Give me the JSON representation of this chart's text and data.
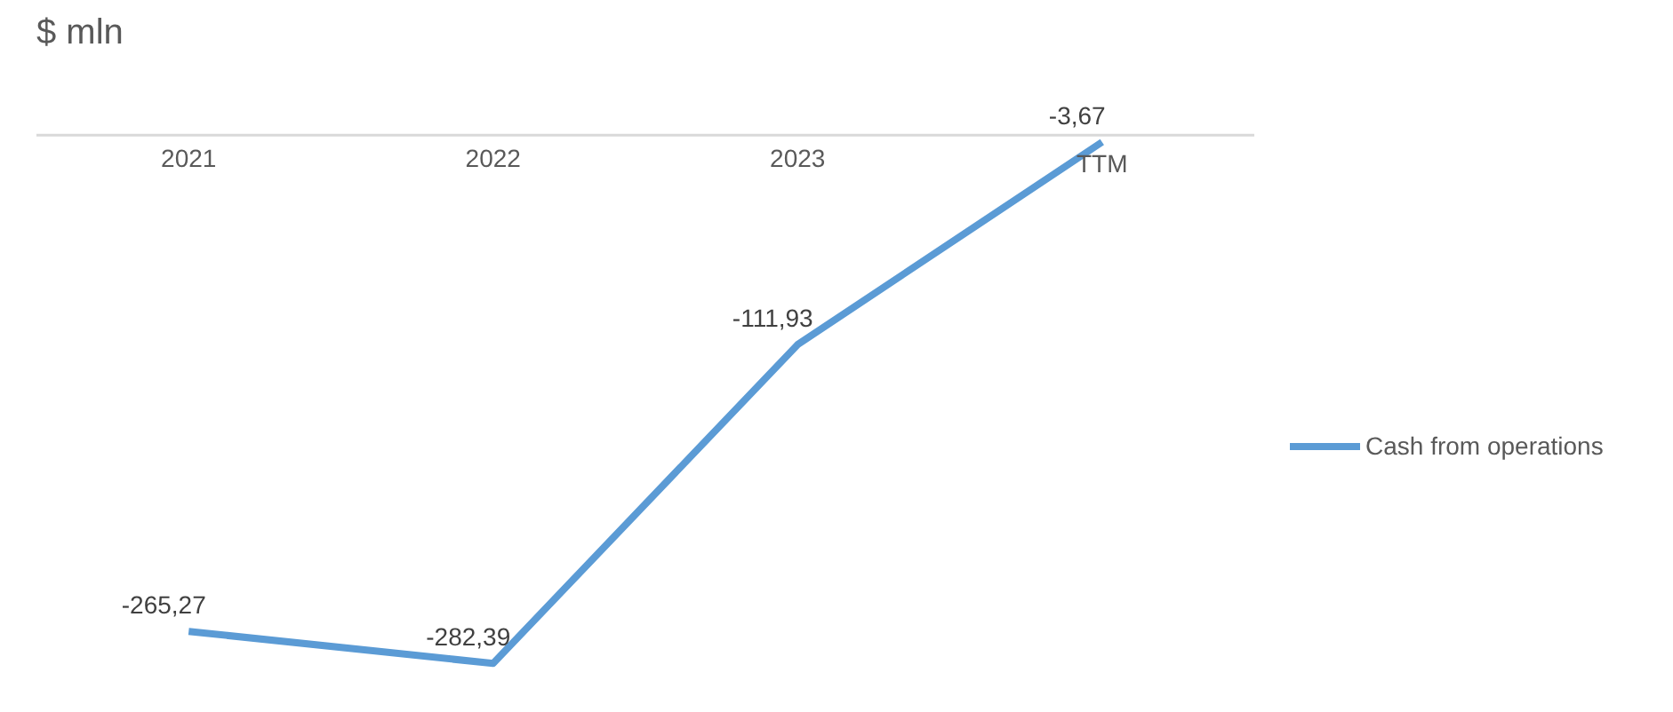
{
  "chart_data": {
    "type": "line",
    "title": "$ mln",
    "categories": [
      "2021",
      "2022",
      "2023",
      "TTM"
    ],
    "series": [
      {
        "name": "Cash from operations",
        "color": "#5b9bd5",
        "values": [
          -265.27,
          -282.39,
          -111.93,
          -3.67
        ],
        "value_labels": [
          "-265,27",
          "-282,39",
          "-111,93",
          "-3,67"
        ]
      }
    ],
    "legend": "right",
    "grid": false,
    "marker": "none",
    "line_style": "solid"
  }
}
